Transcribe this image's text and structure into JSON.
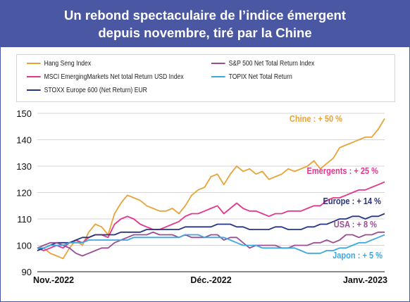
{
  "title": {
    "line1": "Un rebond spectaculaire de l’indice émergent",
    "line2": "depuis novembre, tiré par la Chine"
  },
  "legend": [
    {
      "name": "Hang Seng Index",
      "color": "#e8a33a"
    },
    {
      "name": "S&P 500 Net Total Return Index",
      "color": "#9a4e93"
    },
    {
      "name": "MSCI EmergingMarkets Net total Return USD Index",
      "color": "#e3378f"
    },
    {
      "name": "TOPIX Net Total Return",
      "color": "#3ea8e0"
    },
    {
      "name": "STOXX Europe 600 (Net Return) EUR",
      "color": "#283583"
    }
  ],
  "chart_data": {
    "type": "line",
    "title": "Un rebond spectaculaire de l’indice émergent depuis novembre, tiré par la Chine",
    "xlabel": "",
    "ylabel": "",
    "x_tick_labels": [
      "Nov.-2022",
      "Déc.-2022",
      "Janv.-2023"
    ],
    "y_ticks": [
      90,
      100,
      110,
      120,
      130,
      140,
      150
    ],
    "ylim": [
      90,
      150
    ],
    "grid": "horizontal",
    "legend_position": "top",
    "x": [
      1,
      2,
      3,
      4,
      5,
      6,
      7,
      8,
      9,
      10,
      11,
      12,
      13,
      14,
      15,
      16,
      17,
      18,
      19,
      20,
      21,
      22,
      23,
      24,
      25,
      26,
      27,
      28,
      29,
      30,
      31,
      32,
      33,
      34,
      35,
      36,
      37,
      38,
      39,
      40,
      41,
      42,
      43,
      44,
      45,
      46,
      47,
      48,
      49,
      50,
      51,
      52,
      53,
      54,
      55
    ],
    "series": [
      {
        "name": "Hang Seng Index",
        "color": "#e8a33a",
        "end_label": "Chine : + 50 %",
        "values": [
          98,
          99,
          97,
          96,
          95,
          99,
          102,
          100,
          105,
          108,
          107,
          104,
          112,
          116,
          119,
          118,
          117,
          115,
          114,
          113,
          113,
          114,
          112,
          115,
          119,
          121,
          122,
          126,
          127,
          123,
          127,
          130,
          128,
          129,
          127,
          128,
          125,
          126,
          127,
          129,
          128,
          129,
          130,
          132,
          129,
          131,
          133,
          137,
          138,
          139,
          140,
          141,
          141,
          144,
          148
        ]
      },
      {
        "name": "MSCI EmergingMarkets Net total Return USD Index",
        "color": "#e3378f",
        "end_label": "Emergents : + 25 %",
        "values": [
          99,
          98,
          99,
          100,
          99,
          101,
          102,
          101,
          103,
          104,
          104,
          103,
          108,
          110,
          111,
          110,
          108,
          107,
          106,
          106,
          107,
          108,
          109,
          111,
          112,
          112,
          113,
          114,
          115,
          112,
          114,
          116,
          114,
          113,
          113,
          112,
          111,
          112,
          112,
          113,
          113,
          113,
          114,
          115,
          115,
          117,
          118,
          118,
          119,
          120,
          121,
          121,
          122,
          123,
          124
        ]
      },
      {
        "name": "STOXX Europe 600 (Net Return) EUR",
        "color": "#283583",
        "end_label": "Europe : + 14 %",
        "values": [
          98,
          99,
          100,
          101,
          101,
          101,
          102,
          103,
          103,
          104,
          104,
          104,
          104,
          105,
          105,
          105,
          105,
          106,
          106,
          106,
          106,
          106,
          106,
          107,
          107,
          107,
          107,
          107,
          108,
          108,
          108,
          107,
          107,
          106,
          106,
          106,
          106,
          107,
          107,
          106,
          106,
          106,
          107,
          107,
          108,
          108,
          109,
          110,
          110,
          111,
          111,
          110,
          111,
          111,
          112
        ]
      },
      {
        "name": "S&P 500 Net Total Return Index",
        "color": "#9a4e93",
        "end_label": "USA : + 8 %",
        "values": [
          99,
          100,
          101,
          101,
          100,
          99,
          97,
          96,
          97,
          98,
          99,
          99,
          101,
          102,
          103,
          104,
          104,
          104,
          105,
          104,
          104,
          104,
          103,
          104,
          103,
          103,
          103,
          104,
          104,
          102,
          103,
          103,
          101,
          99,
          100,
          100,
          100,
          100,
          99,
          99,
          100,
          100,
          100,
          101,
          101,
          102,
          101,
          102,
          104,
          104,
          103,
          104,
          104,
          105,
          105
        ]
      },
      {
        "name": "TOPIX Net Total Return",
        "color": "#3ea8e0",
        "end_label": "Japon : + 5 %",
        "values": [
          99,
          99,
          100,
          100,
          100,
          101,
          101,
          101,
          102,
          102,
          102,
          102,
          102,
          102,
          102,
          103,
          103,
          103,
          103,
          103,
          103,
          103,
          103,
          104,
          104,
          104,
          103,
          103,
          103,
          103,
          102,
          101,
          100,
          100,
          100,
          99,
          99,
          99,
          99,
          99,
          99,
          98,
          97,
          97,
          97,
          98,
          98,
          99,
          99,
          100,
          101,
          101,
          102,
          103,
          104
        ]
      }
    ]
  }
}
